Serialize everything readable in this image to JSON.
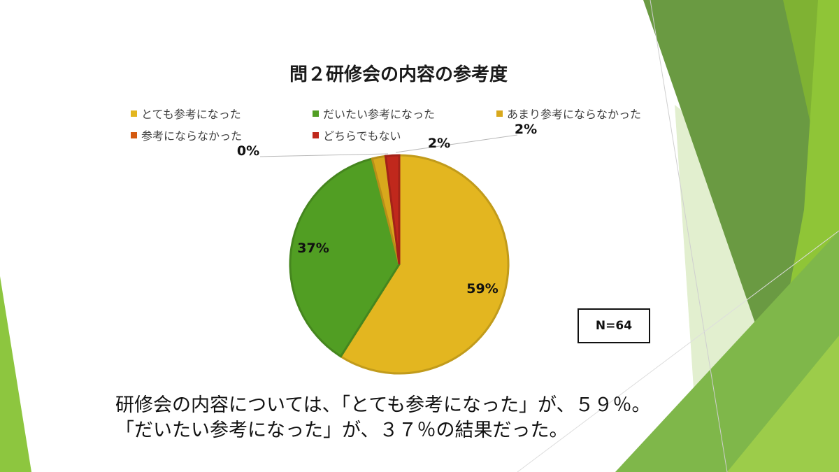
{
  "chart_data": {
    "type": "pie",
    "title": "問２研修会の内容の参考度",
    "categories": [
      "とても参考になった",
      "だいたい参考になった",
      "あまり参考にならなかった",
      "参考にならなかった",
      "どちらでもない"
    ],
    "values": [
      59,
      37,
      2,
      0,
      2
    ],
    "labels": [
      "59%",
      "37%",
      "2%",
      "0%",
      "2%"
    ],
    "colors": [
      "#e3b620",
      "#519e23",
      "#d8a81c",
      "#d45a10",
      "#c0281c"
    ],
    "legend_position": "top"
  },
  "n_label": "N=64",
  "summary": [
    "研修会の内容については、「とても参考になった」が、５９％。",
    "「だいたい参考になった」が、３７％の結果だった。"
  ]
}
